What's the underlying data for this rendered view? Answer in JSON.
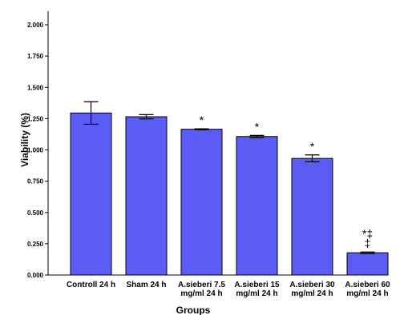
{
  "chart_data": {
    "type": "bar",
    "xlabel": "Groups",
    "ylabel": "Viability (%)",
    "ylim": [
      0,
      2.1
    ],
    "yticks": [
      "0.000",
      "0.250",
      "0.500",
      "0.750",
      "1.000",
      "1.250",
      "1.500",
      "1.750",
      "2.000"
    ],
    "bar_color": "#5b5bf5",
    "grid": false,
    "categories": [
      [
        "Controll 24 h"
      ],
      [
        "Sham 24 h"
      ],
      [
        "A.sieberi 7.5",
        "mg/ml 24 h"
      ],
      [
        "A.sieberi 15",
        "mg/ml 24 h"
      ],
      [
        "A.sieberi 30",
        "mg/ml 24 h"
      ],
      [
        "A.sieberi 60",
        "mg/ml 24 h"
      ]
    ],
    "values": [
      1.295,
      1.265,
      1.165,
      1.107,
      0.932,
      0.178
    ],
    "error_low": [
      1.205,
      1.248,
      1.161,
      1.098,
      0.905,
      0.172
    ],
    "error_high": [
      1.385,
      1.282,
      1.169,
      1.116,
      0.96,
      0.184
    ],
    "annotations": [
      "",
      "",
      "*",
      "*",
      "*",
      "*‡\n‡"
    ]
  }
}
